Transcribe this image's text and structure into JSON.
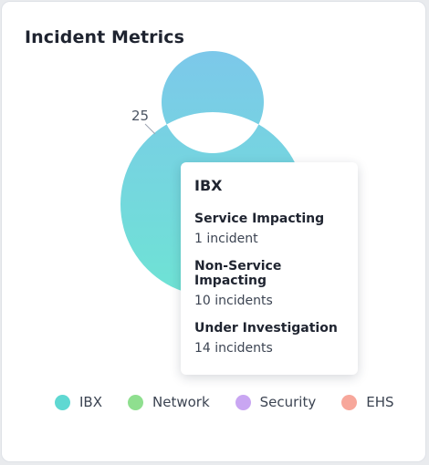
{
  "card": {
    "title": "Incident Metrics"
  },
  "chart_data": {
    "type": "donut",
    "series": [
      {
        "name": "IBX",
        "value": 25,
        "color": "#5fd8d2"
      }
    ],
    "data_labels": [
      "25"
    ]
  },
  "tooltip": {
    "title": "IBX",
    "rows": [
      {
        "label": "Service Impacting",
        "value": "1 incident"
      },
      {
        "label": "Non-Service Impacting",
        "value": "10 incidents"
      },
      {
        "label": "Under Investigation",
        "value": "14 incidents"
      }
    ]
  },
  "legend": {
    "items": [
      {
        "label": "IBX",
        "color": "#5fd8d2"
      },
      {
        "label": "Network",
        "color": "#8fdf8f"
      },
      {
        "label": "Security",
        "color": "#c9a6f2"
      },
      {
        "label": "EHS",
        "color": "#f7a79b"
      }
    ]
  }
}
